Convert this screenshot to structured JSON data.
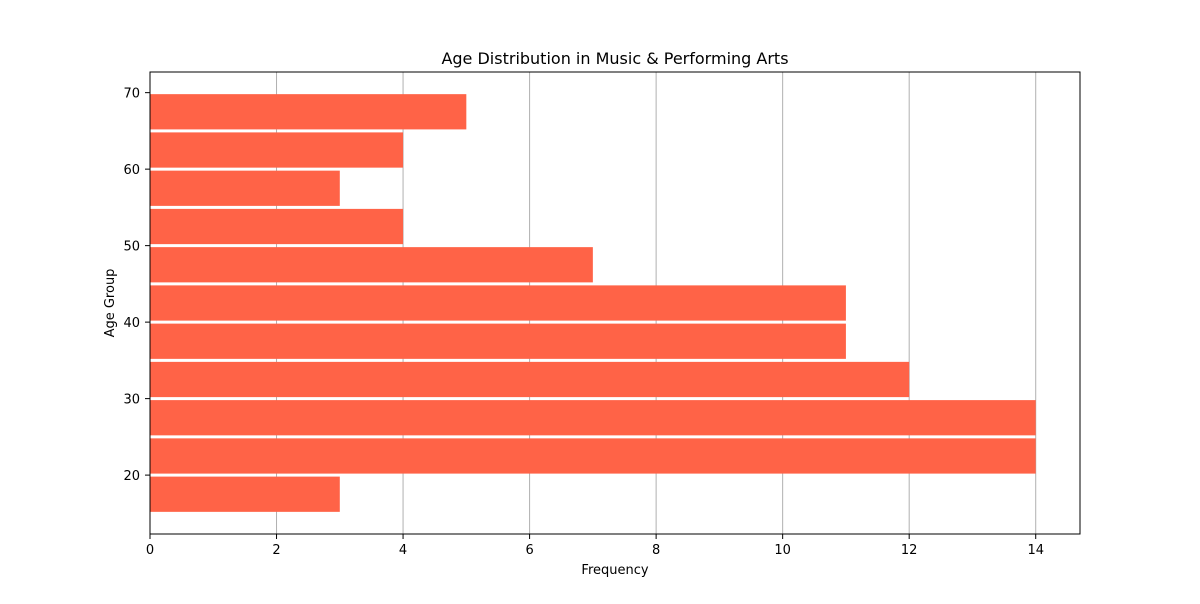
{
  "chart_data": {
    "type": "bar",
    "orientation": "horizontal",
    "title": "Age Distribution in Music & Performing Arts",
    "xlabel": "Frequency",
    "ylabel": "Age Group",
    "bins": [
      {
        "from": 15,
        "to": 20,
        "value": 3
      },
      {
        "from": 20,
        "to": 25,
        "value": 14
      },
      {
        "from": 25,
        "to": 30,
        "value": 14
      },
      {
        "from": 30,
        "to": 35,
        "value": 12
      },
      {
        "from": 35,
        "to": 40,
        "value": 11
      },
      {
        "from": 40,
        "to": 45,
        "value": 11
      },
      {
        "from": 45,
        "to": 50,
        "value": 7
      },
      {
        "from": 50,
        "to": 55,
        "value": 4
      },
      {
        "from": 55,
        "to": 60,
        "value": 3
      },
      {
        "from": 60,
        "to": 65,
        "value": 4
      },
      {
        "from": 65,
        "to": 70,
        "value": 5
      }
    ],
    "xlim": [
      0,
      14.7
    ],
    "ylim": [
      12.3,
      72.7
    ],
    "xticks": [
      "0",
      "2",
      "4",
      "6",
      "8",
      "10",
      "12",
      "14"
    ],
    "yticks": [
      "20",
      "30",
      "40",
      "50",
      "60",
      "70"
    ],
    "grid": "vertical",
    "bar_color": "#ff6347",
    "grid_color": "#b0b0b0"
  }
}
